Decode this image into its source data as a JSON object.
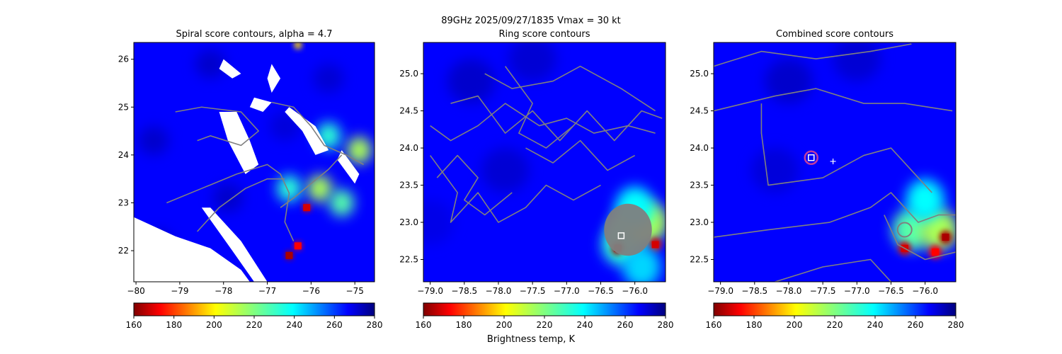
{
  "figure": {
    "suptitle": "89GHz  2025/09/27/1835    Vmax = 30 kt",
    "colorbar_label": "Brightness temp, K",
    "colormap": "jet_r",
    "contour_color": "#808080",
    "center_marker_color": "#ffffff",
    "combined_circle_color": "#c03ca0"
  },
  "chart_data": [
    {
      "type": "heatmap",
      "title": "Spiral score contours, alpha =  4.7",
      "xlim": [
        -80.05,
        -74.55
      ],
      "ylim": [
        21.35,
        26.35
      ],
      "xticks": [
        -80,
        -79,
        -78,
        -77,
        -76,
        -75
      ],
      "xtick_labels": [
        "−80",
        "−79",
        "−78",
        "−77",
        "−76",
        "−75"
      ],
      "yticks": [
        22,
        23,
        24,
        25,
        26
      ],
      "ytick_labels": [
        "22",
        "23",
        "24",
        "25",
        "26"
      ],
      "background_tb": 265,
      "warm_patches": [
        {
          "x": -79.5,
          "y": 22.1,
          "tb": 275
        },
        {
          "x": -78.3,
          "y": 25.9,
          "tb": 272
        },
        {
          "x": -79.6,
          "y": 24.3,
          "tb": 272
        },
        {
          "x": -77.9,
          "y": 23.1,
          "tb": 272
        },
        {
          "x": -75.6,
          "y": 25.6,
          "tb": 271
        },
        {
          "x": -76.6,
          "y": 24.6,
          "tb": 270
        }
      ],
      "convective_cells": [
        {
          "x": -76.1,
          "y": 22.9,
          "tb": 170
        },
        {
          "x": -76.5,
          "y": 21.9,
          "tb": 165
        },
        {
          "x": -76.3,
          "y": 22.1,
          "tb": 175
        },
        {
          "x": -75.8,
          "y": 23.3,
          "tb": 215
        },
        {
          "x": -75.3,
          "y": 23.0,
          "tb": 225
        },
        {
          "x": -74.9,
          "y": 24.1,
          "tb": 215
        },
        {
          "x": -75.6,
          "y": 24.4,
          "tb": 230
        },
        {
          "x": -76.3,
          "y": 26.3,
          "tb": 200
        },
        {
          "x": -76.5,
          "y": 23.3,
          "tb": 230
        }
      ],
      "nodata_regions": [
        [
          [
            -80.05,
            22.7
          ],
          [
            -79.1,
            22.3
          ],
          [
            -78.3,
            22.05
          ],
          [
            -77.6,
            21.6
          ],
          [
            -77.4,
            21.35
          ],
          [
            -80.05,
            21.35
          ]
        ],
        [
          [
            -78.5,
            22.9
          ],
          [
            -77.8,
            22.0
          ],
          [
            -77.3,
            21.35
          ],
          [
            -77.0,
            21.35
          ],
          [
            -77.6,
            22.2
          ],
          [
            -78.3,
            22.9
          ]
        ],
        [
          [
            -77.7,
            24.9
          ],
          [
            -77.4,
            24.3
          ],
          [
            -77.2,
            23.8
          ],
          [
            -77.5,
            23.6
          ],
          [
            -77.9,
            24.3
          ],
          [
            -78.1,
            24.9
          ]
        ],
        [
          [
            -77.3,
            25.2
          ],
          [
            -76.9,
            25.1
          ],
          [
            -77.1,
            24.9
          ],
          [
            -77.4,
            25.0
          ]
        ],
        [
          [
            -76.9,
            25.9
          ],
          [
            -76.7,
            25.6
          ],
          [
            -76.9,
            25.3
          ],
          [
            -77.0,
            25.6
          ]
        ],
        [
          [
            -76.5,
            25.0
          ],
          [
            -75.9,
            24.6
          ],
          [
            -75.6,
            24.1
          ],
          [
            -75.9,
            24.0
          ],
          [
            -76.2,
            24.5
          ],
          [
            -76.6,
            24.9
          ]
        ],
        [
          [
            -75.3,
            24.1
          ],
          [
            -74.9,
            23.6
          ],
          [
            -75.0,
            23.4
          ],
          [
            -75.4,
            23.9
          ]
        ],
        [
          [
            -78.0,
            26.0
          ],
          [
            -77.6,
            25.7
          ],
          [
            -77.8,
            25.6
          ],
          [
            -78.1,
            25.8
          ]
        ]
      ],
      "contours": [
        [
          [
            -79.1,
            24.9
          ],
          [
            -78.5,
            25.0
          ],
          [
            -77.6,
            24.9
          ],
          [
            -77.2,
            24.5
          ],
          [
            -77.6,
            24.2
          ],
          [
            -78.3,
            24.4
          ],
          [
            -78.6,
            24.3
          ]
        ],
        [
          [
            -79.3,
            23.0
          ],
          [
            -78.5,
            23.3
          ],
          [
            -77.7,
            23.6
          ],
          [
            -77.0,
            23.8
          ],
          [
            -76.7,
            23.6
          ],
          [
            -76.5,
            23.2
          ],
          [
            -76.6,
            22.6
          ],
          [
            -76.4,
            22.2
          ]
        ],
        [
          [
            -76.9,
            25.1
          ],
          [
            -76.4,
            25.0
          ],
          [
            -76.0,
            24.6
          ],
          [
            -75.7,
            24.2
          ],
          [
            -75.2,
            24.0
          ],
          [
            -74.8,
            23.8
          ]
        ],
        [
          [
            -78.6,
            22.4
          ],
          [
            -78.1,
            22.9
          ],
          [
            -77.5,
            23.3
          ],
          [
            -77.0,
            23.5
          ],
          [
            -76.6,
            23.5
          ]
        ],
        [
          [
            -76.7,
            22.9
          ],
          [
            -76.4,
            23.1
          ],
          [
            -76.0,
            23.4
          ],
          [
            -75.6,
            23.7
          ],
          [
            -75.3,
            24.0
          ]
        ]
      ],
      "center_cross": {
        "x": -77.35,
        "y": 23.82
      }
    },
    {
      "type": "heatmap",
      "title": "Ring score contours",
      "xlim": [
        -79.1,
        -75.55
      ],
      "ylim": [
        22.2,
        25.42
      ],
      "xticks": [
        -79.0,
        -78.5,
        -78.0,
        -77.5,
        -77.0,
        -76.5,
        -76.0
      ],
      "xtick_labels": [
        "−79.0",
        "−78.5",
        "−78.0",
        "−77.5",
        "−77.0",
        "−76.5",
        "−76.0"
      ],
      "yticks": [
        22.5,
        23.0,
        23.5,
        24.0,
        24.5,
        25.0
      ],
      "ytick_labels": [
        "22.5",
        "23.0",
        "23.5",
        "24.0",
        "24.5",
        "25.0"
      ],
      "background_tb": 265,
      "warm_patches": [
        {
          "x": -78.4,
          "y": 24.9,
          "tb": 272
        },
        {
          "x": -77.5,
          "y": 25.2,
          "tb": 271
        },
        {
          "x": -77.9,
          "y": 23.7,
          "tb": 271
        },
        {
          "x": -79.0,
          "y": 23.0,
          "tb": 268
        }
      ],
      "convective_cells": [
        {
          "x": -76.1,
          "y": 22.9,
          "tb": 225
        },
        {
          "x": -76.2,
          "y": 22.7,
          "tb": 230
        },
        {
          "x": -75.8,
          "y": 23.0,
          "tb": 215
        },
        {
          "x": -76.25,
          "y": 22.65,
          "tb": 165
        },
        {
          "x": -75.7,
          "y": 22.7,
          "tb": 170
        },
        {
          "x": -76.0,
          "y": 23.2,
          "tb": 235
        },
        {
          "x": -75.9,
          "y": 22.4,
          "tb": 240
        }
      ],
      "nodata_regions": [],
      "contours": [
        [
          [
            -78.2,
            25.0
          ],
          [
            -77.8,
            24.8
          ],
          [
            -77.2,
            24.9
          ],
          [
            -76.8,
            25.1
          ],
          [
            -76.2,
            24.8
          ],
          [
            -75.7,
            24.5
          ]
        ],
        [
          [
            -79.0,
            24.3
          ],
          [
            -78.7,
            24.1
          ],
          [
            -78.3,
            24.3
          ],
          [
            -77.9,
            24.6
          ],
          [
            -77.4,
            24.3
          ],
          [
            -77.0,
            24.4
          ],
          [
            -76.6,
            24.2
          ],
          [
            -76.1,
            24.3
          ],
          [
            -75.7,
            24.2
          ]
        ],
        [
          [
            -78.9,
            23.6
          ],
          [
            -78.6,
            23.9
          ],
          [
            -78.3,
            23.6
          ],
          [
            -78.5,
            23.3
          ],
          [
            -78.2,
            23.1
          ],
          [
            -77.8,
            23.4
          ]
        ],
        [
          [
            -77.6,
            24.0
          ],
          [
            -77.2,
            23.8
          ],
          [
            -76.8,
            24.1
          ],
          [
            -76.4,
            23.7
          ],
          [
            -76.0,
            23.9
          ]
        ],
        [
          [
            -78.7,
            24.6
          ],
          [
            -78.3,
            24.7
          ],
          [
            -77.9,
            24.2
          ],
          [
            -77.5,
            24.5
          ],
          [
            -77.1,
            24.1
          ],
          [
            -76.7,
            24.5
          ],
          [
            -76.3,
            24.1
          ],
          [
            -75.9,
            24.5
          ],
          [
            -75.6,
            24.4
          ]
        ],
        [
          [
            -79.0,
            23.9
          ],
          [
            -78.6,
            23.4
          ],
          [
            -78.7,
            23.0
          ],
          [
            -78.3,
            23.4
          ],
          [
            -78.0,
            23.0
          ],
          [
            -77.6,
            23.2
          ],
          [
            -77.3,
            23.5
          ],
          [
            -76.9,
            23.3
          ],
          [
            -76.5,
            23.5
          ]
        ],
        [
          [
            -77.9,
            25.1
          ],
          [
            -77.5,
            24.6
          ],
          [
            -77.7,
            24.2
          ],
          [
            -77.3,
            24.0
          ],
          [
            -76.9,
            24.3
          ]
        ]
      ],
      "dense_contour_blob": {
        "x": -76.1,
        "y": 22.9,
        "rx": 0.35,
        "ry": 0.35
      },
      "center_square": {
        "x": -76.2,
        "y": 22.82
      }
    },
    {
      "type": "heatmap",
      "title": "Combined score contours",
      "xlim": [
        -79.1,
        -75.55
      ],
      "ylim": [
        22.2,
        25.42
      ],
      "xticks": [
        -79.0,
        -78.5,
        -78.0,
        -77.5,
        -77.0,
        -76.5,
        -76.0
      ],
      "xtick_labels": [
        "−79.0",
        "−78.5",
        "−78.0",
        "−77.5",
        "−77.0",
        "−76.5",
        "−76.0"
      ],
      "yticks": [
        22.5,
        23.0,
        23.5,
        24.0,
        24.5,
        25.0
      ],
      "ytick_labels": [
        "22.5",
        "23.0",
        "23.5",
        "24.0",
        "24.5",
        "25.0"
      ],
      "background_tb": 265,
      "warm_patches": [
        {
          "x": -78.0,
          "y": 24.9,
          "tb": 272
        },
        {
          "x": -77.0,
          "y": 25.2,
          "tb": 271
        },
        {
          "x": -78.2,
          "y": 23.7,
          "tb": 270
        }
      ],
      "convective_cells": [
        {
          "x": -76.2,
          "y": 22.9,
          "tb": 225
        },
        {
          "x": -75.8,
          "y": 22.9,
          "tb": 215
        },
        {
          "x": -76.0,
          "y": 23.3,
          "tb": 235
        },
        {
          "x": -75.7,
          "y": 22.8,
          "tb": 165
        },
        {
          "x": -76.3,
          "y": 22.65,
          "tb": 170
        },
        {
          "x": -75.85,
          "y": 22.6,
          "tb": 175
        }
      ],
      "nodata_regions": [],
      "contours": [
        [
          [
            -79.1,
            25.1
          ],
          [
            -78.4,
            25.3
          ],
          [
            -77.6,
            25.2
          ],
          [
            -76.8,
            25.3
          ],
          [
            -76.2,
            25.4
          ]
        ],
        [
          [
            -79.1,
            24.5
          ],
          [
            -78.2,
            24.7
          ],
          [
            -77.6,
            24.8
          ],
          [
            -76.9,
            24.6
          ],
          [
            -76.3,
            24.6
          ],
          [
            -75.6,
            24.5
          ]
        ],
        [
          [
            -78.4,
            24.6
          ],
          [
            -78.4,
            24.2
          ],
          [
            -78.3,
            23.5
          ],
          [
            -77.5,
            23.6
          ],
          [
            -76.9,
            23.9
          ],
          [
            -76.5,
            24.0
          ],
          [
            -76.2,
            23.7
          ],
          [
            -75.9,
            23.4
          ]
        ],
        [
          [
            -79.1,
            22.8
          ],
          [
            -78.3,
            22.9
          ],
          [
            -77.4,
            23.0
          ],
          [
            -76.8,
            23.2
          ],
          [
            -76.5,
            23.4
          ],
          [
            -76.1,
            23.0
          ],
          [
            -75.8,
            23.1
          ],
          [
            -75.55,
            23.1
          ]
        ],
        [
          [
            -76.6,
            23.1
          ],
          [
            -76.4,
            22.7
          ],
          [
            -76.0,
            22.5
          ],
          [
            -75.55,
            22.6
          ]
        ],
        [
          [
            -78.2,
            22.2
          ],
          [
            -77.5,
            22.4
          ],
          [
            -76.8,
            22.5
          ],
          [
            -76.5,
            22.2
          ]
        ]
      ],
      "ring_marker": {
        "x": -76.3,
        "y": 22.9
      },
      "combined_circle": {
        "x": -77.67,
        "y": 23.87
      },
      "center_square": {
        "x": -77.67,
        "y": 23.87
      },
      "center_cross": {
        "x": -77.35,
        "y": 23.82
      }
    }
  ],
  "colorbars": [
    {
      "vmin": 160,
      "vmax": 280,
      "ticks": [
        160,
        180,
        200,
        220,
        240,
        260,
        280
      ],
      "tick_labels": [
        "160",
        "180",
        "200",
        "220",
        "240",
        "260",
        "280"
      ]
    },
    {
      "vmin": 160,
      "vmax": 280,
      "ticks": [
        160,
        180,
        200,
        220,
        240,
        260,
        280
      ],
      "tick_labels": [
        "160",
        "180",
        "200",
        "220",
        "240",
        "260",
        "280"
      ]
    },
    {
      "vmin": 160,
      "vmax": 280,
      "ticks": [
        160,
        180,
        200,
        220,
        240,
        260,
        280
      ],
      "tick_labels": [
        "160",
        "180",
        "200",
        "220",
        "240",
        "260",
        "280"
      ]
    }
  ]
}
